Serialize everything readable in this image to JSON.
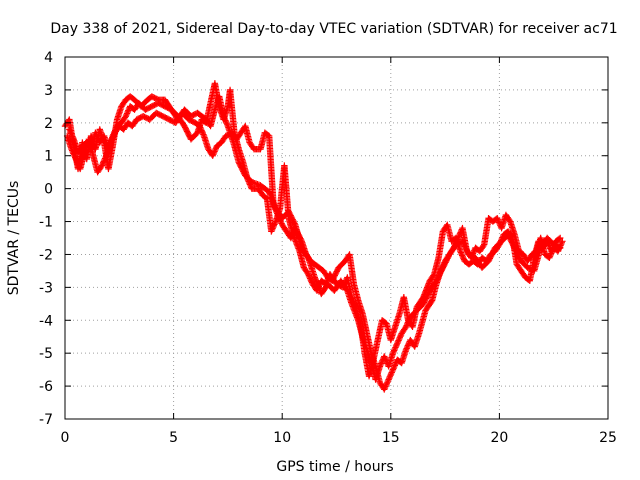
{
  "chart_data": {
    "type": "scatter",
    "title": "Day 338 of 2021, Sidereal Day-to-day VTEC variation (SDTVAR) for receiver ac71",
    "xlabel": "GPS time / hours",
    "ylabel": "SDTVAR / TECUs",
    "xlim": [
      0,
      25
    ],
    "ylim": [
      -7,
      4
    ],
    "xticks": [
      0,
      5,
      10,
      15,
      20,
      25
    ],
    "yticks": [
      -7,
      -6,
      -5,
      -4,
      -3,
      -2,
      -1,
      0,
      1,
      2,
      3,
      4
    ],
    "grid": true,
    "marker": "plus",
    "color": "#ff0000",
    "series": [
      {
        "points": [
          [
            0.0,
            1.9
          ],
          [
            0.2,
            2.1
          ],
          [
            0.4,
            1.3
          ],
          [
            0.6,
            0.6
          ],
          [
            0.8,
            1.4
          ],
          [
            1.0,
            0.9
          ],
          [
            1.2,
            1.6
          ],
          [
            1.4,
            1.2
          ],
          [
            1.6,
            1.8
          ],
          [
            1.8,
            1.4
          ],
          [
            2.0,
            0.6
          ],
          [
            2.2,
            1.3
          ],
          [
            2.4,
            2.1
          ],
          [
            2.6,
            2.5
          ],
          [
            2.8,
            2.7
          ],
          [
            3.0,
            2.8
          ],
          [
            3.2,
            2.7
          ],
          [
            3.5,
            2.5
          ],
          [
            3.8,
            2.7
          ],
          [
            4.0,
            2.8
          ],
          [
            4.3,
            2.7
          ],
          [
            4.6,
            2.7
          ],
          [
            4.9,
            2.4
          ],
          [
            5.2,
            2.2
          ],
          [
            5.5,
            1.9
          ],
          [
            5.8,
            1.5
          ],
          [
            6.1,
            1.7
          ],
          [
            6.3,
            2.1
          ],
          [
            6.5,
            2.0
          ],
          [
            6.7,
            2.6
          ],
          [
            6.9,
            3.2
          ],
          [
            7.1,
            2.5
          ],
          [
            7.3,
            2.1
          ],
          [
            7.5,
            2.5
          ],
          [
            7.6,
            3.0
          ],
          [
            7.8,
            1.7
          ],
          [
            8.0,
            1.2
          ],
          [
            8.2,
            0.8
          ],
          [
            8.4,
            0.3
          ],
          [
            8.6,
            0.0
          ],
          [
            8.9,
            0.0
          ],
          [
            9.1,
            -0.2
          ],
          [
            9.3,
            -0.3
          ],
          [
            9.5,
            -1.3
          ],
          [
            9.7,
            -1.0
          ],
          [
            9.9,
            -0.6
          ],
          [
            10.1,
            0.7
          ],
          [
            10.3,
            -0.9
          ],
          [
            10.5,
            -1.4
          ],
          [
            10.8,
            -1.9
          ],
          [
            11.0,
            -2.4
          ],
          [
            11.2,
            -2.6
          ],
          [
            11.4,
            -2.9
          ],
          [
            11.6,
            -3.1
          ],
          [
            11.8,
            -2.8
          ],
          [
            12.0,
            -2.9
          ],
          [
            12.2,
            -2.6
          ],
          [
            12.5,
            -2.9
          ],
          [
            12.8,
            -3.0
          ],
          [
            13.0,
            -2.7
          ],
          [
            13.2,
            -3.3
          ],
          [
            13.4,
            -3.6
          ],
          [
            13.6,
            -4.1
          ],
          [
            13.8,
            -5.0
          ],
          [
            14.0,
            -5.7
          ],
          [
            14.2,
            -5.2
          ],
          [
            14.4,
            -4.6
          ],
          [
            14.6,
            -4.0
          ],
          [
            14.8,
            -4.1
          ],
          [
            15.0,
            -4.6
          ],
          [
            15.2,
            -4.2
          ],
          [
            15.4,
            -3.8
          ],
          [
            15.6,
            -3.3
          ],
          [
            15.8,
            -4.0
          ],
          [
            16.0,
            -4.2
          ],
          [
            16.2,
            -3.6
          ],
          [
            16.5,
            -3.3
          ],
          [
            16.8,
            -2.8
          ],
          [
            17.0,
            -2.6
          ],
          [
            17.2,
            -2.1
          ],
          [
            17.4,
            -1.3
          ],
          [
            17.6,
            -1.1
          ],
          [
            17.8,
            -1.6
          ],
          [
            18.0,
            -1.5
          ],
          [
            18.2,
            -1.9
          ],
          [
            18.4,
            -2.2
          ],
          [
            18.6,
            -2.3
          ],
          [
            18.8,
            -2.2
          ],
          [
            19.0,
            -2.3
          ],
          [
            19.2,
            -2.1
          ],
          [
            19.4,
            -2.2
          ],
          [
            19.6,
            -2.0
          ],
          [
            19.8,
            -1.9
          ],
          [
            20.0,
            -1.7
          ],
          [
            20.2,
            -1.4
          ],
          [
            20.4,
            -1.3
          ],
          [
            20.6,
            -1.5
          ],
          [
            20.8,
            -2.3
          ],
          [
            21.0,
            -2.5
          ],
          [
            21.2,
            -2.7
          ],
          [
            21.4,
            -2.8
          ],
          [
            21.6,
            -2.1
          ],
          [
            21.8,
            -1.6
          ],
          [
            22.0,
            -1.8
          ],
          [
            22.2,
            -1.6
          ],
          [
            22.4,
            -1.9
          ],
          [
            22.6,
            -1.6
          ],
          [
            22.8,
            -1.5
          ]
        ]
      },
      {
        "points": [
          [
            0.1,
            1.6
          ],
          [
            0.3,
            1.2
          ],
          [
            0.5,
            0.9
          ],
          [
            0.7,
            0.6
          ],
          [
            0.9,
            1.1
          ],
          [
            1.1,
            1.5
          ],
          [
            1.3,
            1.0
          ],
          [
            1.5,
            0.5
          ],
          [
            1.7,
            0.7
          ],
          [
            1.9,
            1.0
          ],
          [
            2.1,
            1.4
          ],
          [
            2.3,
            1.7
          ],
          [
            2.5,
            1.9
          ],
          [
            2.7,
            1.8
          ],
          [
            2.9,
            2.0
          ],
          [
            3.1,
            1.9
          ],
          [
            3.3,
            2.1
          ],
          [
            3.6,
            2.2
          ],
          [
            3.9,
            2.1
          ],
          [
            4.2,
            2.3
          ],
          [
            4.5,
            2.2
          ],
          [
            4.8,
            2.1
          ],
          [
            5.1,
            2.0
          ],
          [
            5.4,
            2.3
          ],
          [
            5.7,
            2.1
          ],
          [
            6.0,
            2.0
          ],
          [
            6.2,
            1.9
          ],
          [
            6.4,
            1.6
          ],
          [
            6.6,
            1.2
          ],
          [
            6.8,
            1.0
          ],
          [
            7.0,
            1.3
          ],
          [
            7.2,
            1.4
          ],
          [
            7.4,
            1.6
          ],
          [
            7.7,
            1.7
          ],
          [
            7.9,
            1.5
          ],
          [
            8.1,
            1.7
          ],
          [
            8.3,
            1.9
          ],
          [
            8.5,
            1.4
          ],
          [
            8.7,
            1.2
          ],
          [
            9.0,
            1.2
          ],
          [
            9.2,
            1.7
          ],
          [
            9.4,
            1.6
          ],
          [
            9.6,
            -0.5
          ],
          [
            9.8,
            -0.8
          ],
          [
            10.0,
            -1.1
          ],
          [
            10.2,
            -1.3
          ],
          [
            10.4,
            -1.5
          ],
          [
            10.6,
            -1.2
          ],
          [
            10.9,
            -1.6
          ],
          [
            11.1,
            -2.0
          ],
          [
            11.3,
            -2.2
          ],
          [
            11.5,
            -2.3
          ],
          [
            11.7,
            -2.4
          ],
          [
            11.9,
            -2.5
          ],
          [
            12.1,
            -2.7
          ],
          [
            12.3,
            -2.8
          ],
          [
            12.6,
            -2.4
          ],
          [
            12.9,
            -2.2
          ],
          [
            13.1,
            -2.0
          ],
          [
            13.3,
            -2.9
          ],
          [
            13.5,
            -3.4
          ],
          [
            13.7,
            -3.8
          ],
          [
            13.9,
            -4.4
          ],
          [
            14.1,
            -5.0
          ],
          [
            14.3,
            -5.4
          ],
          [
            14.5,
            -5.9
          ],
          [
            14.7,
            -6.1
          ],
          [
            14.9,
            -5.8
          ],
          [
            15.1,
            -5.5
          ],
          [
            15.3,
            -5.2
          ],
          [
            15.5,
            -5.3
          ],
          [
            15.7,
            -4.9
          ],
          [
            15.9,
            -4.6
          ],
          [
            16.1,
            -4.8
          ],
          [
            16.3,
            -4.4
          ],
          [
            16.6,
            -3.7
          ],
          [
            16.9,
            -3.4
          ],
          [
            17.1,
            -2.9
          ],
          [
            17.3,
            -2.5
          ],
          [
            17.5,
            -2.2
          ],
          [
            17.7,
            -2.0
          ],
          [
            17.9,
            -1.8
          ],
          [
            18.1,
            -1.5
          ],
          [
            18.3,
            -1.2
          ],
          [
            18.5,
            -1.9
          ],
          [
            18.7,
            -2.1
          ],
          [
            18.9,
            -1.8
          ],
          [
            19.1,
            -1.9
          ],
          [
            19.3,
            -1.7
          ],
          [
            19.5,
            -0.9
          ],
          [
            19.7,
            -1.0
          ],
          [
            19.9,
            -0.9
          ],
          [
            20.1,
            -1.2
          ],
          [
            20.3,
            -0.8
          ],
          [
            20.5,
            -1.0
          ],
          [
            20.7,
            -1.4
          ],
          [
            20.9,
            -1.9
          ],
          [
            21.1,
            -2.0
          ],
          [
            21.3,
            -2.2
          ],
          [
            21.5,
            -2.0
          ],
          [
            21.7,
            -1.9
          ],
          [
            21.9,
            -1.5
          ],
          [
            22.1,
            -2.0
          ],
          [
            22.3,
            -2.1
          ],
          [
            22.5,
            -1.8
          ],
          [
            22.7,
            -1.9
          ],
          [
            22.9,
            -1.6
          ]
        ]
      },
      {
        "points": [
          [
            0.2,
            1.8
          ],
          [
            0.4,
            1.5
          ],
          [
            0.6,
            1.1
          ],
          [
            0.8,
            1.3
          ],
          [
            1.0,
            1.4
          ],
          [
            1.2,
            1.2
          ],
          [
            1.4,
            1.7
          ],
          [
            1.6,
            1.4
          ],
          [
            1.8,
            1.6
          ],
          [
            2.0,
            1.2
          ],
          [
            2.2,
            1.6
          ],
          [
            2.4,
            1.9
          ],
          [
            2.6,
            2.0
          ],
          [
            2.8,
            2.2
          ],
          [
            3.0,
            2.5
          ],
          [
            3.2,
            2.4
          ],
          [
            3.4,
            2.6
          ],
          [
            3.7,
            2.4
          ],
          [
            4.0,
            2.5
          ],
          [
            4.3,
            2.6
          ],
          [
            4.6,
            2.5
          ],
          [
            4.9,
            2.4
          ],
          [
            5.2,
            2.1
          ],
          [
            5.5,
            2.4
          ],
          [
            5.8,
            2.2
          ],
          [
            6.1,
            2.3
          ],
          [
            6.3,
            2.2
          ],
          [
            6.5,
            2.1
          ],
          [
            6.7,
            1.9
          ],
          [
            6.9,
            2.4
          ],
          [
            7.1,
            2.8
          ],
          [
            7.3,
            2.2
          ],
          [
            7.5,
            1.9
          ],
          [
            7.8,
            1.3
          ],
          [
            8.0,
            0.8
          ],
          [
            8.3,
            0.4
          ],
          [
            8.6,
            0.2
          ],
          [
            9.0,
            0.1
          ],
          [
            9.4,
            -0.1
          ],
          [
            9.7,
            -0.6
          ],
          [
            10.0,
            -0.9
          ],
          [
            10.3,
            -0.7
          ],
          [
            10.6,
            -1.1
          ],
          [
            10.9,
            -1.8
          ],
          [
            11.2,
            -2.1
          ],
          [
            11.5,
            -2.7
          ],
          [
            11.8,
            -3.2
          ],
          [
            12.1,
            -2.9
          ],
          [
            12.4,
            -3.1
          ],
          [
            12.7,
            -2.8
          ],
          [
            13.0,
            -3.1
          ],
          [
            13.2,
            -3.5
          ],
          [
            13.5,
            -4.0
          ],
          [
            13.7,
            -4.5
          ],
          [
            13.9,
            -4.9
          ],
          [
            14.1,
            -5.3
          ],
          [
            14.3,
            -5.8
          ],
          [
            14.5,
            -5.4
          ],
          [
            14.7,
            -5.1
          ],
          [
            14.9,
            -5.4
          ],
          [
            15.1,
            -5.0
          ],
          [
            15.3,
            -4.7
          ],
          [
            15.5,
            -4.4
          ],
          [
            15.7,
            -4.2
          ],
          [
            15.9,
            -3.9
          ],
          [
            16.2,
            -3.7
          ],
          [
            16.5,
            -3.5
          ],
          [
            16.8,
            -3.1
          ],
          [
            17.1,
            -2.8
          ],
          [
            17.4,
            -2.4
          ],
          [
            17.7,
            -2.0
          ],
          [
            18.0,
            -1.7
          ],
          [
            18.3,
            -1.6
          ],
          [
            18.6,
            -2.0
          ],
          [
            18.9,
            -2.1
          ],
          [
            19.2,
            -2.4
          ],
          [
            19.5,
            -2.2
          ],
          [
            19.8,
            -1.8
          ],
          [
            20.1,
            -1.6
          ],
          [
            20.4,
            -1.4
          ],
          [
            20.7,
            -1.8
          ],
          [
            21.0,
            -2.2
          ],
          [
            21.3,
            -2.4
          ],
          [
            21.6,
            -2.5
          ],
          [
            21.9,
            -1.8
          ],
          [
            22.2,
            -1.5
          ],
          [
            22.5,
            -1.7
          ],
          [
            22.8,
            -1.8
          ]
        ]
      }
    ]
  }
}
